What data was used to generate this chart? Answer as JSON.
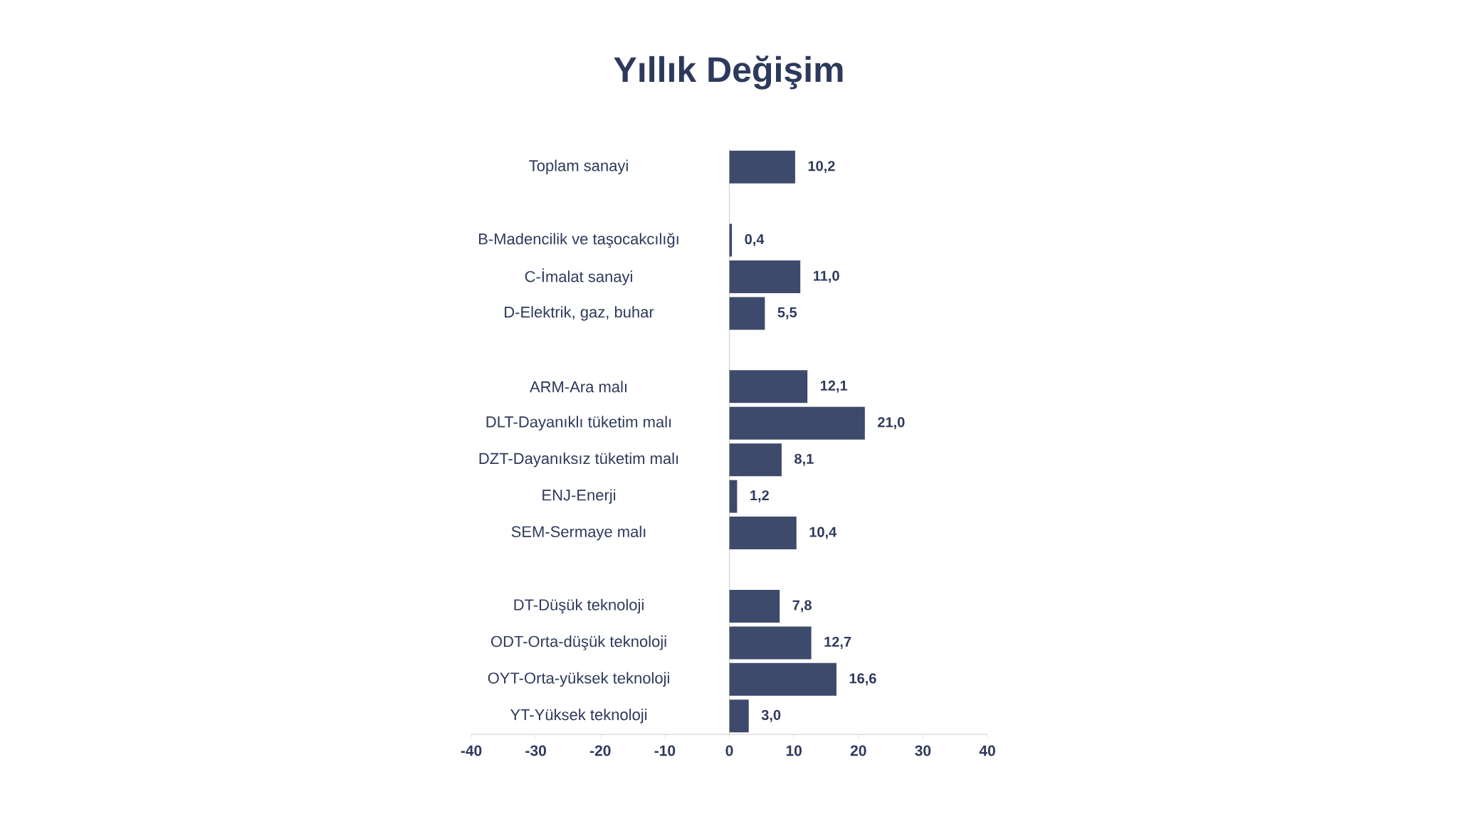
{
  "chart_data": {
    "type": "bar",
    "orientation": "horizontal",
    "title": "Yıllık Değişim",
    "categories": [
      "Toplam sanayi",
      null,
      "B-Madencilik ve taşocakcılığı",
      "C-İmalat sanayi",
      "D-Elektrik, gaz, buhar",
      null,
      "ARM-Ara malı",
      "DLT-Dayanıklı tüketim malı",
      "DZT-Dayanıksız tüketim malı",
      "ENJ-Enerji",
      "SEM-Sermaye malı",
      null,
      "DT-Düşük teknoloji",
      "ODT-Orta-düşük teknoloji",
      "OYT-Orta-yüksek teknoloji",
      "YT-Yüksek teknoloji"
    ],
    "values": [
      10.2,
      null,
      0.4,
      11.0,
      5.5,
      null,
      12.1,
      21.0,
      8.1,
      1.2,
      10.4,
      null,
      7.8,
      12.7,
      16.6,
      3.0
    ],
    "value_labels": [
      "10,2",
      null,
      "0,4",
      "11,0",
      "5,5",
      null,
      "12,1",
      "21,0",
      "8,1",
      "1,2",
      "10,4",
      null,
      "7,8",
      "12,7",
      "16,6",
      "3,0"
    ],
    "color": "#3d4a6b",
    "xlim": [
      -40,
      40
    ],
    "xticks": [
      -40,
      -30,
      -20,
      -10,
      0,
      10,
      20,
      30,
      40
    ]
  }
}
